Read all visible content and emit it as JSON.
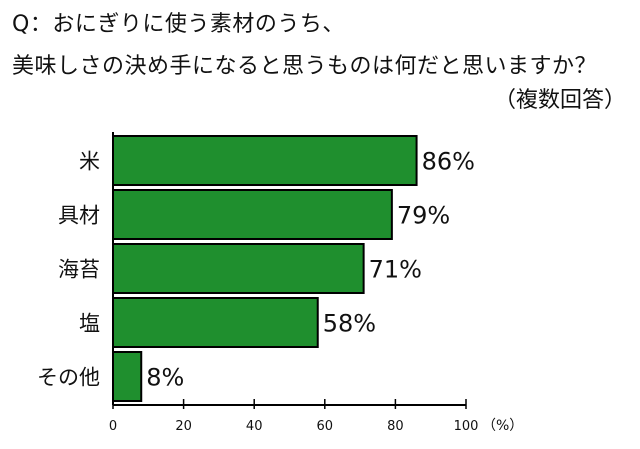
{
  "question": {
    "line1": "Q：おにぎりに使う素材のうち、",
    "line2": "美味しさの決め手になると思うものは何だと思いますか？",
    "note": "（複数回答）"
  },
  "chart_data": {
    "type": "bar",
    "orientation": "horizontal",
    "categories": [
      "米",
      "具材",
      "海苔",
      "塩",
      "その他"
    ],
    "values": [
      86,
      79,
      71,
      58,
      8
    ],
    "value_labels": [
      "86%",
      "79%",
      "71%",
      "58%",
      "8%"
    ],
    "xlim": [
      0,
      100
    ],
    "xticks": [
      "0",
      "20",
      "40",
      "60",
      "80",
      "100"
    ],
    "xunit": "（%）",
    "bar_color": "#1f8f2e",
    "grid": false
  }
}
